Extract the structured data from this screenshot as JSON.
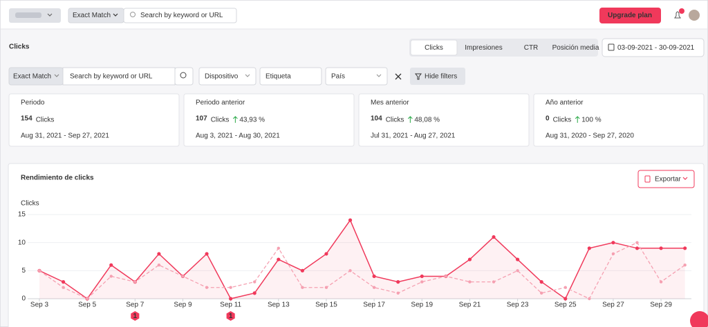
{
  "header": {
    "match": "Exact Match",
    "search_placeholder": "Search by keyword or URL",
    "upgrade": "Upgrade plan"
  },
  "page": {
    "title": "Clicks",
    "tabs": [
      "Clicks",
      "Impresiones",
      "CTR",
      "Posición media"
    ],
    "date_range": "03-09-2021 - 30-09-2021"
  },
  "filters": {
    "match": "Exact Match",
    "search_placeholder": "Search by keyword or URL",
    "device": "Dispositivo",
    "tag": "Etiqueta",
    "country": "País",
    "hide": "Hide filters"
  },
  "cards": [
    {
      "label": "Periodo",
      "value": 154,
      "unit": "Clicks",
      "range": "Aug 31, 2021 - Sep 27, 2021"
    },
    {
      "label": "Periodo anterior",
      "value": 107,
      "unit": "Clicks",
      "change": "43,93 %",
      "range": "Aug 3, 2021 - Aug 30, 2021"
    },
    {
      "label": "Mes anterior",
      "value": 104,
      "unit": "Clicks",
      "change": "48,08 %",
      "range": "Jul 31, 2021 - Aug 27, 2021"
    },
    {
      "label": "Año anterior",
      "value": 0,
      "unit": "Clicks",
      "change": "100 %",
      "range": "Aug 31, 2020 - Sep 27, 2020"
    }
  ],
  "chart_data": {
    "type": "line",
    "title": "Rendimiento de clicks",
    "export": "Exportar",
    "y_label": "Clicks",
    "categories": [
      "Sep 3",
      null,
      "Sep 5",
      null,
      "Sep 7",
      null,
      "Sep 9",
      null,
      "Sep 11",
      null,
      "Sep 13",
      null,
      "Sep 15",
      null,
      "Sep 17",
      null,
      "Sep 19",
      null,
      "Sep 21",
      null,
      "Sep 23",
      null,
      "Sep 25",
      null,
      "Sep 27",
      null,
      "Sep 29",
      null
    ],
    "series": [
      {
        "color": "#f0395b",
        "style": "solid",
        "values": [
          5,
          3,
          0,
          6,
          3,
          8,
          4,
          8,
          0,
          1,
          7,
          5,
          8,
          14,
          4,
          3,
          4,
          4,
          7,
          11,
          7,
          3,
          0,
          9,
          10,
          9,
          9,
          9
        ]
      },
      {
        "color": "#f5a0b1",
        "style": "dashed",
        "values": [
          5,
          2,
          0,
          4,
          3,
          6,
          4,
          2,
          2,
          3,
          9,
          2,
          2,
          5,
          2,
          1,
          3,
          4,
          3,
          3,
          5,
          1,
          2,
          0,
          8,
          10,
          3,
          6
        ]
      }
    ],
    "ylim": [
      0,
      15
    ],
    "yticks": [
      0,
      5,
      10,
      15
    ],
    "grid": true,
    "annotations": [
      {
        "x": "Sep 7",
        "label": "1"
      },
      {
        "x": "Sep 11",
        "label": "1"
      }
    ]
  }
}
